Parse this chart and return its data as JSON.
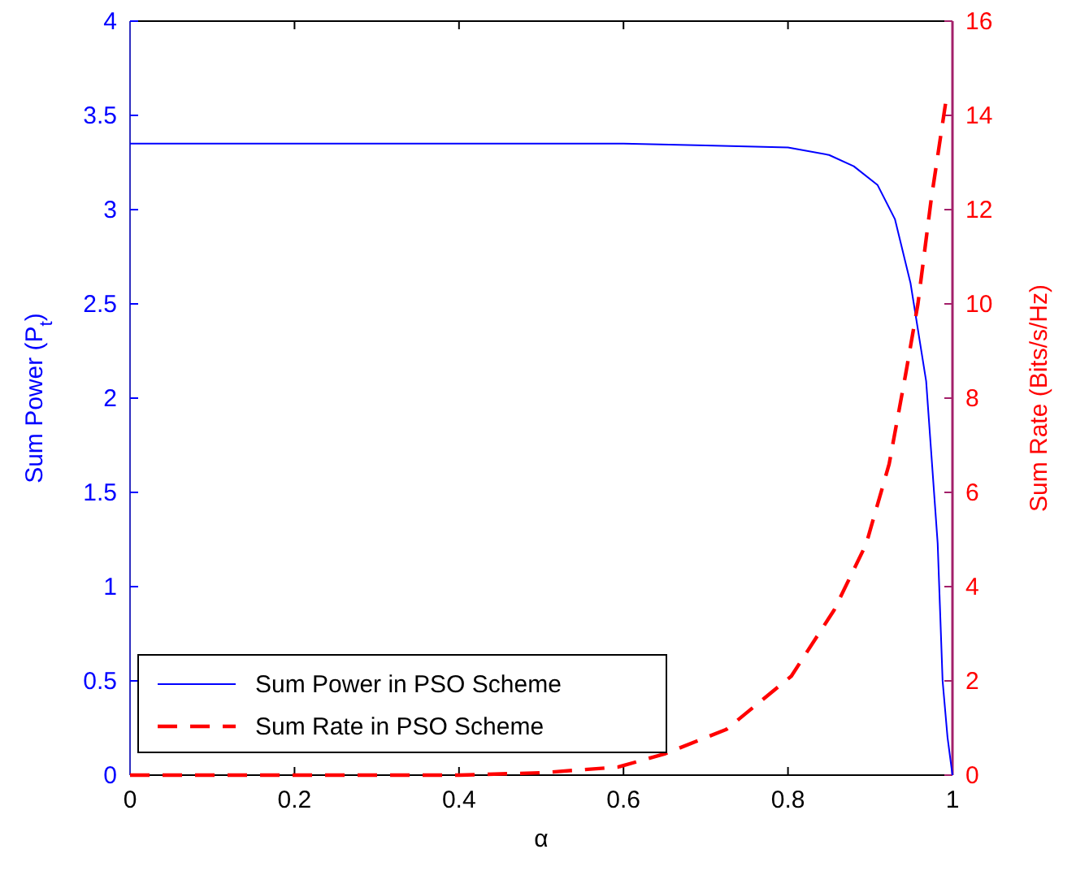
{
  "chart_data": {
    "type": "line",
    "xlabel": "α",
    "ylabel": "Sum Power (P$_{t}$)",
    "y2label": "Sum Rate (Bits/s/Hz)",
    "xlim": [
      0,
      1
    ],
    "xticks": [
      0,
      0.2,
      0.4,
      0.6,
      0.8,
      1
    ],
    "ylim": [
      0,
      4
    ],
    "yticks": [
      0,
      0.5,
      1,
      1.5,
      2,
      2.5,
      3,
      3.5,
      4
    ],
    "y2lim": [
      0,
      16
    ],
    "y2ticks": [
      0,
      2,
      4,
      6,
      8,
      10,
      12,
      14,
      16
    ],
    "legend": "bottom left",
    "grid": false,
    "series": [
      {
        "name": "Sum Power in PSO Scheme",
        "color": "#0000ff",
        "line_style": "solid",
        "x": [
          0,
          0.2,
          0.4,
          0.6,
          0.7,
          0.8,
          0.85,
          0.88,
          0.909,
          0.93,
          0.949,
          0.968,
          0.982,
          0.988,
          0.994,
          1
        ],
        "values": [
          3.35,
          3.35,
          3.35,
          3.35,
          3.34,
          3.33,
          3.29,
          3.23,
          3.13,
          2.95,
          2.61,
          2.09,
          1.23,
          0.5,
          0.2,
          0
        ]
      },
      {
        "name": "Sum Rate in PSO Scheme",
        "color": "#ff0000",
        "line_style": "dashed",
        "axis": "y2",
        "x": [
          0,
          0.2,
          0.4,
          0.5,
          0.593,
          0.65,
          0.725,
          0.804,
          0.856,
          0.895,
          0.923,
          0.943,
          0.958,
          0.974,
          0.992
        ],
        "values": [
          0,
          0,
          0,
          0.05,
          0.17,
          0.45,
          0.97,
          2.1,
          3.5,
          4.9,
          6.6,
          8.5,
          10,
          12.2,
          14.3
        ]
      }
    ]
  }
}
